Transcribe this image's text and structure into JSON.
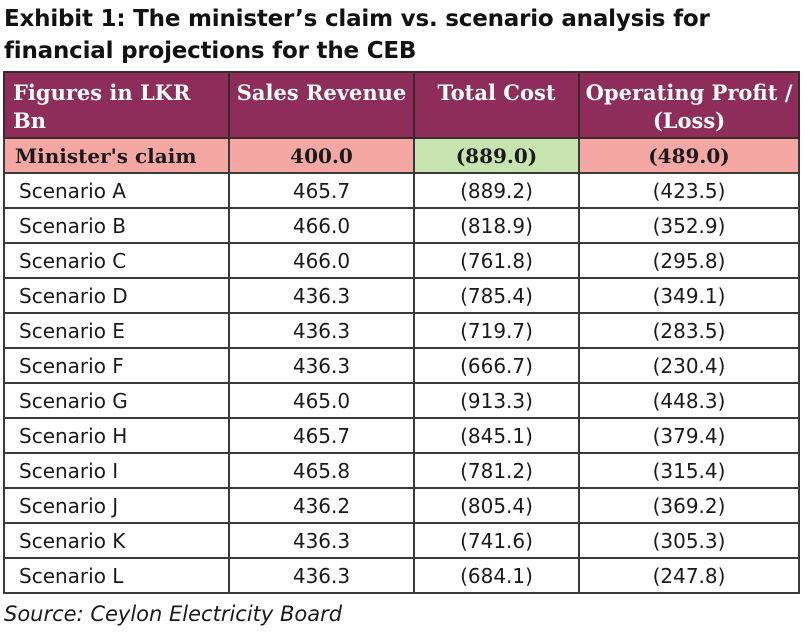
{
  "exhibit": {
    "title": "Exhibit 1: The minister’s claim vs. scenario analysis for financial projections for the CEB",
    "source": "Source: Ceylon Electricity Board"
  },
  "colors": {
    "header_bg": "#8f2d5a",
    "claim_pink": "#f4a7a3",
    "claim_green": "#c6e3b0"
  },
  "table": {
    "headers": [
      "Figures in LKR Bn",
      "Sales Revenue",
      "Total Cost",
      "Operating Profit / (Loss)"
    ],
    "claim_row": {
      "cells": [
        "Minister's claim",
        "400.0",
        "(889.0)",
        "(489.0)"
      ],
      "cell_colors": [
        "#f4a7a3",
        "#f4a7a3",
        "#c6e3b0",
        "#f4a7a3"
      ]
    },
    "rows": [
      [
        "Scenario A",
        "465.7",
        "(889.2)",
        "(423.5)"
      ],
      [
        "Scenario B",
        "466.0",
        "(818.9)",
        "(352.9)"
      ],
      [
        "Scenario C",
        "466.0",
        "(761.8)",
        "(295.8)"
      ],
      [
        "Scenario D",
        "436.3",
        "(785.4)",
        "(349.1)"
      ],
      [
        "Scenario E",
        "436.3",
        "(719.7)",
        "(283.5)"
      ],
      [
        "Scenario F",
        "436.3",
        "(666.7)",
        "(230.4)"
      ],
      [
        "Scenario G",
        "465.0",
        "(913.3)",
        "(448.3)"
      ],
      [
        "Scenario H",
        "465.7",
        "(845.1)",
        "(379.4)"
      ],
      [
        "Scenario I",
        "465.8",
        "(781.2)",
        "(315.4)"
      ],
      [
        "Scenario J",
        "436.2",
        "(805.4)",
        "(369.2)"
      ],
      [
        "Scenario K",
        "436.3",
        "(741.6)",
        "(305.3)"
      ],
      [
        "Scenario L",
        "436.3",
        "(684.1)",
        "(247.8)"
      ]
    ]
  }
}
